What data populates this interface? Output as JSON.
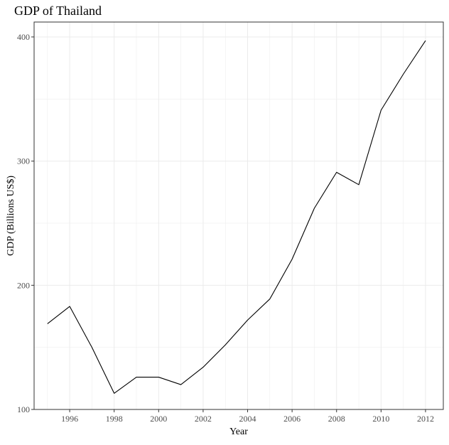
{
  "chart_data": {
    "type": "line",
    "title": "GDP of Thailand",
    "xlabel": "Year",
    "ylabel": "GDP (Billions US$)",
    "xlim": [
      1994.4,
      2012.8
    ],
    "ylim": [
      100,
      412
    ],
    "x_ticks": [
      1996,
      1998,
      2000,
      2002,
      2004,
      2006,
      2008,
      2010,
      2012
    ],
    "y_ticks": [
      100,
      200,
      300,
      400
    ],
    "x_minor_ticks": [
      1995,
      1997,
      1999,
      2001,
      2003,
      2005,
      2007,
      2009,
      2011
    ],
    "y_minor_ticks": [
      150,
      250,
      350
    ],
    "grid": true,
    "legend": "none",
    "colors": {
      "line": "#000000",
      "grid": "#ebebeb",
      "panel_border": "#333333",
      "tick_label": "#4d4d4d"
    },
    "series": [
      {
        "x": [
          1995,
          1996,
          1997,
          1998,
          1999,
          2000,
          2001,
          2002,
          2003,
          2004,
          2005,
          2006,
          2007,
          2008,
          2009,
          2010,
          2011,
          2012
        ],
        "y": [
          169,
          183,
          150,
          113,
          126,
          126,
          120,
          134,
          152,
          172,
          189,
          221,
          262,
          291,
          281,
          341,
          370,
          397
        ]
      }
    ]
  }
}
